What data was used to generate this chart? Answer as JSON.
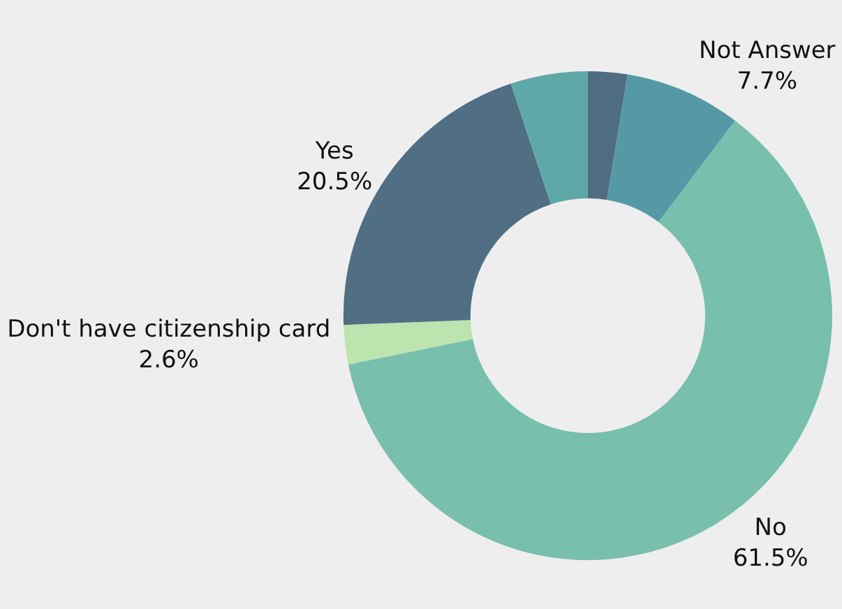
{
  "chart_data": {
    "type": "donut",
    "categories": [
      null,
      "Not Answer",
      "No",
      "Don't have citizenship card",
      "Yes",
      null
    ],
    "values": [
      2.6,
      7.7,
      61.5,
      2.6,
      20.5,
      5.1
    ],
    "value_labels": [
      null,
      "7.7%",
      "61.5%",
      "2.6%",
      "20.5%",
      null
    ],
    "colors": [
      "#4f6d80",
      "#5599a6",
      "#78bfad",
      "#bde3ae",
      "#506e84",
      "#5fa8a8"
    ],
    "legend": false
  }
}
